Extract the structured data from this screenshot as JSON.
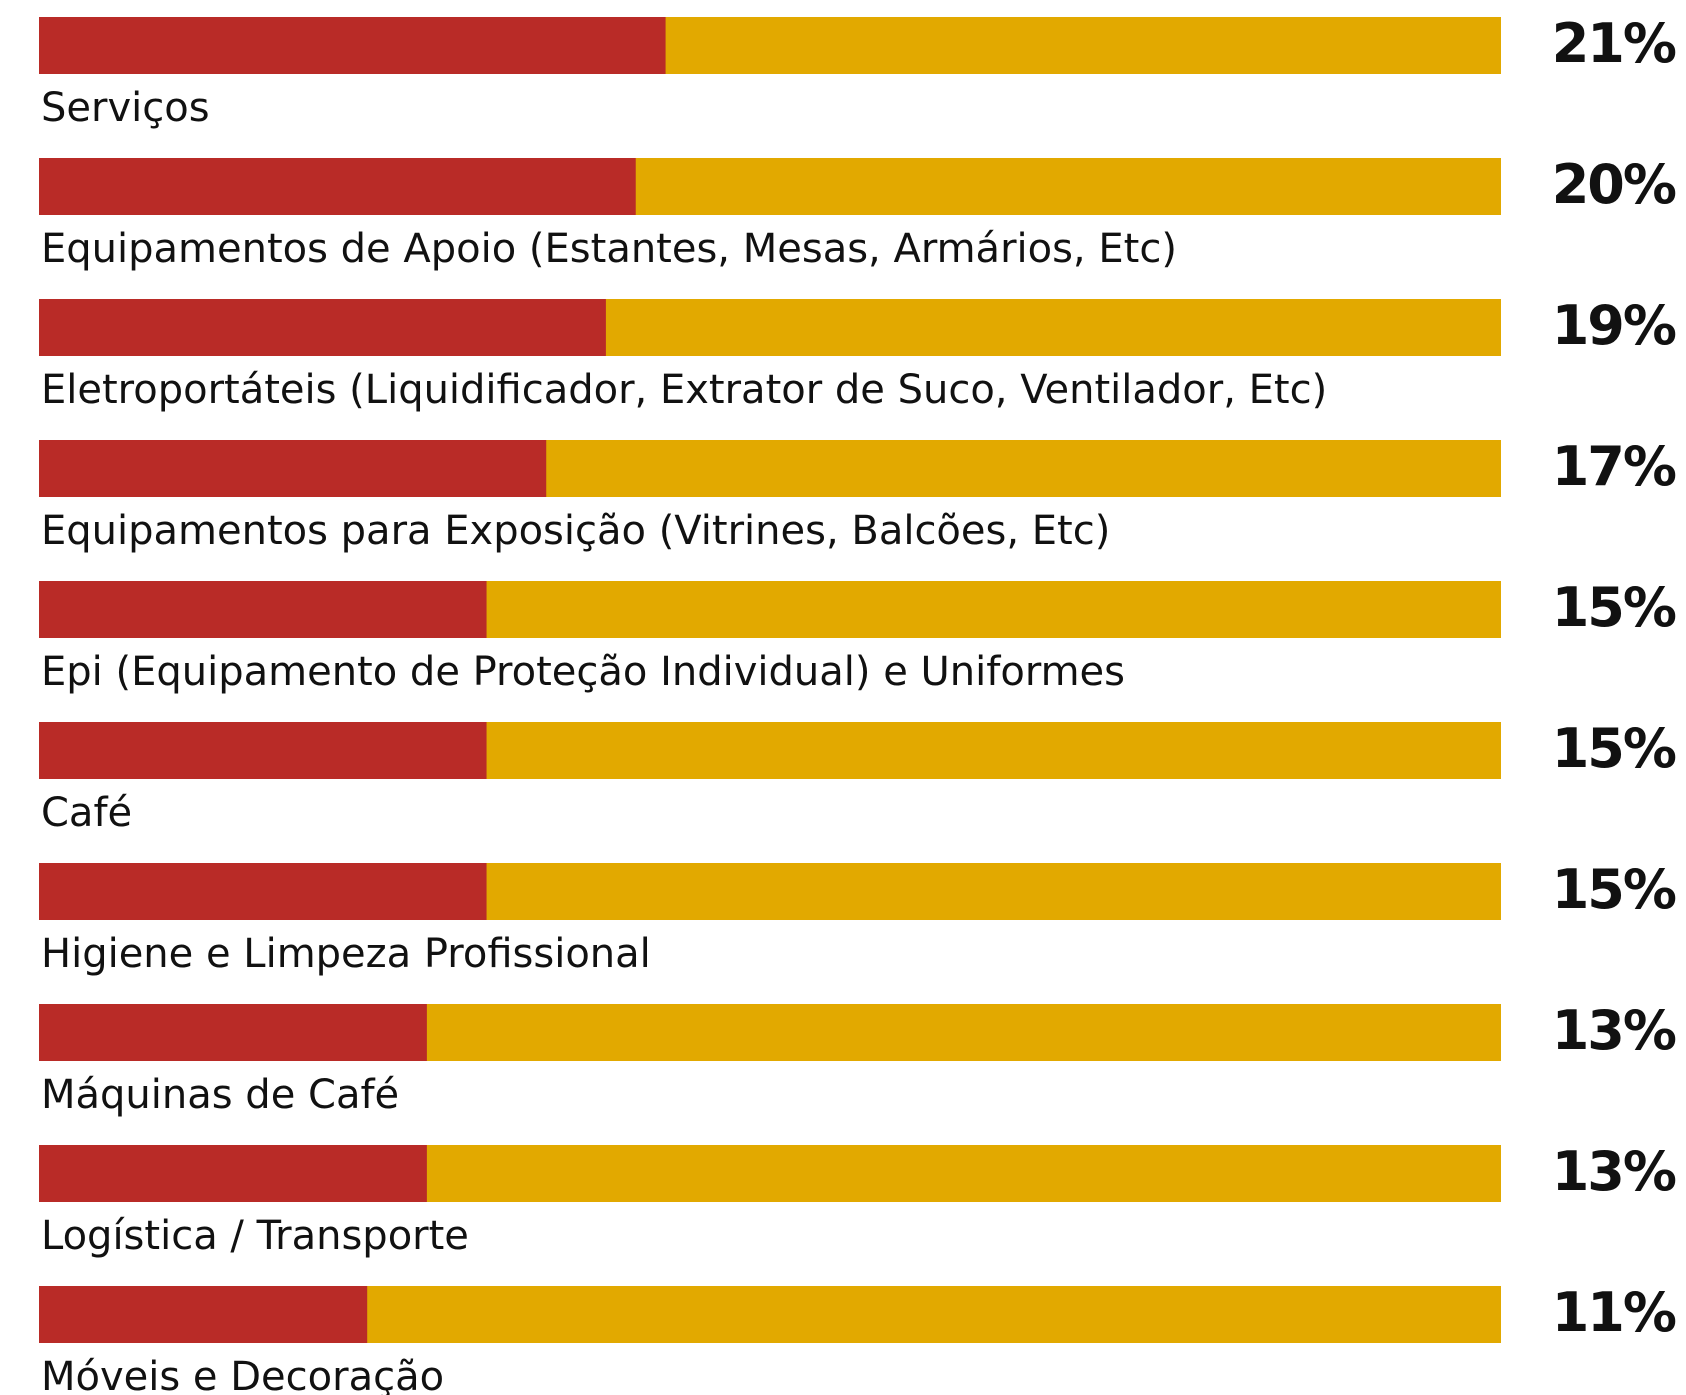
{
  "chart_data": {
    "type": "bar",
    "orientation": "horizontal",
    "categories": [
      "Serviços",
      "Equipamentos de Apoio (Estantes, Mesas, Armários, Etc)",
      "Eletroportáteis (Liquidificador, Extrator de Suco, Ventilador, Etc)",
      "Equipamentos para Exposição (Vitrines, Balcões, Etc)",
      "Epi (Equipamento de Proteção Individual) e Uniformes",
      "Café",
      "Higiene e Limpeza Profissional",
      "Máquinas de Café",
      "Logística / Transporte",
      "Móveis e Decoração"
    ],
    "values": [
      21,
      20,
      19,
      17,
      15,
      15,
      15,
      13,
      13,
      11
    ],
    "value_labels": [
      "21%",
      "20%",
      "19%",
      "17%",
      "15%",
      "15%",
      "15%",
      "13%",
      "13%",
      "11%"
    ],
    "color": "#b92b27",
    "track_color": "#e2a900",
    "xlim": [
      0,
      49
    ]
  }
}
